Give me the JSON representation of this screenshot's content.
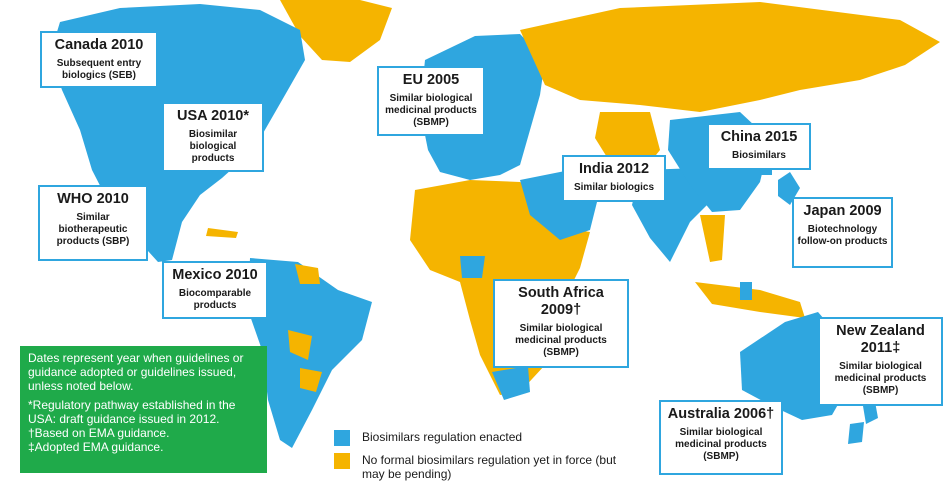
{
  "colors": {
    "regulated": "#2fa6df",
    "no_regulation": "#f5b400",
    "note_bg": "#1faa4a"
  },
  "labels": {
    "canada": {
      "title": "Canada 2010",
      "sub": "Subsequent entry biologics (SEB)"
    },
    "usa": {
      "title": "USA 2010*",
      "sub": "Biosimilar biological products"
    },
    "who": {
      "title": "WHO 2010",
      "sub": "Similar biotherapeutic products (SBP)"
    },
    "mexico": {
      "title": "Mexico 2010",
      "sub": "Biocomparable products"
    },
    "eu": {
      "title": "EU 2005",
      "sub": "Similar biological medicinal products (SBMP)"
    },
    "china": {
      "title": "China 2015",
      "sub": "Biosimilars"
    },
    "india": {
      "title": "India 2012",
      "sub": "Similar biologics"
    },
    "japan": {
      "title": "Japan 2009",
      "sub": "Biotechnology follow-on products"
    },
    "south_africa": {
      "title": "South Africa 2009†",
      "sub": "Similar biological medicinal products (SBMP)"
    },
    "new_zealand": {
      "title": "New Zealand 2011‡",
      "sub": "Similar biological medicinal products (SBMP)"
    },
    "australia": {
      "title": "Australia 2006†",
      "sub": "Similar biological medicinal products (SBMP)"
    }
  },
  "note": {
    "main": "Dates represent year when guidelines or guidance adopted or guidelines issued, unless noted below.",
    "footnote1": "*Regulatory pathway established in the USA: draft guidance issued in 2012.",
    "footnote2": "†Based on EMA guidance.",
    "footnote3": "‡Adopted EMA guidance."
  },
  "legend": {
    "regulated": "Biosimilars regulation enacted",
    "no_regulation": "No formal biosimilars regulation yet in force (but may be pending)"
  }
}
